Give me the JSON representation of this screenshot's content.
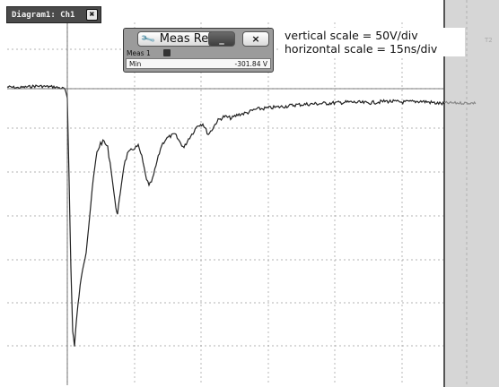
{
  "diagram_tab": {
    "title": "Diagram1: Ch1",
    "close_glyph": "✖"
  },
  "meas_results": {
    "title": "Meas Res",
    "minimize_glyph": "_",
    "close_glyph": "×",
    "meas_label": "Meas 1",
    "row_label": "Min",
    "row_value": "-301.84 V"
  },
  "annotation": {
    "vertical_scale": "vertical scale = 50V/div",
    "horizontal_scale": "horizontal scale = 15ns/div"
  },
  "right_marker": "T2",
  "icons": [
    "wrench-icon",
    "close-icon",
    "minimize-icon",
    "meas-settings-icon"
  ],
  "colors": {
    "trace": "#222222",
    "trace_faded": "#888888",
    "grid": "#9a9a9a",
    "panel": "#d6d6d6"
  }
}
